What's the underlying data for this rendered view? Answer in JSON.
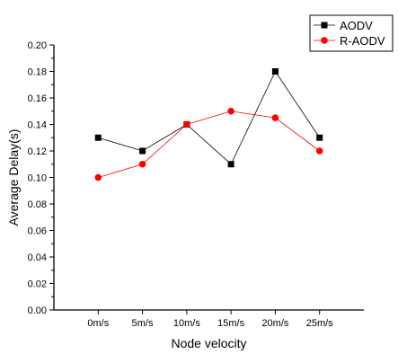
{
  "chart_data": {
    "type": "line",
    "categories": [
      "0m/s",
      "5m/s",
      "10m/s",
      "15m/s",
      "20m/s",
      "25m/s"
    ],
    "xlabel": "Node velocity",
    "ylabel": "Average Delay(s)",
    "ylim": [
      0.0,
      0.2
    ],
    "yticks": [
      "0.00",
      "0.02",
      "0.04",
      "0.06",
      "0.08",
      "0.10",
      "0.12",
      "0.14",
      "0.16",
      "0.18",
      "0.20"
    ],
    "grid": false,
    "legend_position": "top-right",
    "series": [
      {
        "name": "AODV",
        "color": "#000000",
        "marker": "square",
        "values": [
          0.13,
          0.12,
          0.14,
          0.11,
          0.18,
          0.13
        ]
      },
      {
        "name": "R-AODV",
        "color": "#ff0000",
        "marker": "circle",
        "values": [
          0.1,
          0.11,
          0.14,
          0.15,
          0.145,
          0.12
        ]
      }
    ]
  }
}
